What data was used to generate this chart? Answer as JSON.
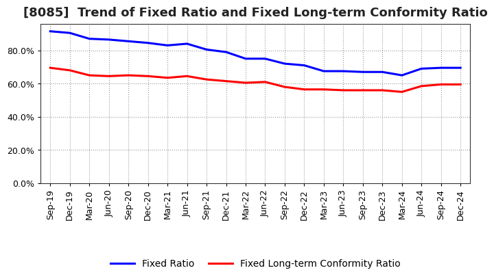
{
  "title": "[8085]  Trend of Fixed Ratio and Fixed Long-term Conformity Ratio",
  "labels": [
    "Sep-19",
    "Dec-19",
    "Mar-20",
    "Jun-20",
    "Sep-20",
    "Dec-20",
    "Mar-21",
    "Jun-21",
    "Sep-21",
    "Dec-21",
    "Mar-22",
    "Jun-22",
    "Sep-22",
    "Dec-22",
    "Mar-23",
    "Jun-23",
    "Sep-23",
    "Dec-23",
    "Mar-24",
    "Jun-24",
    "Sep-24",
    "Dec-24"
  ],
  "fixed_ratio": [
    91.5,
    90.5,
    87.0,
    86.5,
    85.5,
    84.5,
    83.0,
    84.0,
    80.5,
    79.0,
    75.0,
    75.0,
    72.0,
    71.0,
    67.5,
    67.5,
    67.0,
    67.0,
    65.0,
    69.0,
    69.5,
    69.5
  ],
  "fixed_lt_ratio": [
    69.5,
    68.0,
    65.0,
    64.5,
    65.0,
    64.5,
    63.5,
    64.5,
    62.5,
    61.5,
    60.5,
    61.0,
    58.0,
    56.5,
    56.5,
    56.0,
    56.0,
    56.0,
    55.0,
    58.5,
    59.5,
    59.5
  ],
  "fixed_ratio_color": "#0000FF",
  "fixed_lt_ratio_color": "#FF0000",
  "background_color": "#FFFFFF",
  "plot_bg_color": "#FFFFFF",
  "grid_color": "#999999",
  "ylim": [
    0,
    96
  ],
  "yticks": [
    0,
    20,
    40,
    60,
    80
  ],
  "ytick_labels": [
    "0.0%",
    "20.0%",
    "40.0%",
    "60.0%",
    "80.0%"
  ],
  "legend_fixed_ratio": "Fixed Ratio",
  "legend_fixed_lt_ratio": "Fixed Long-term Conformity Ratio",
  "line_width": 2.2,
  "title_fontsize": 13,
  "tick_fontsize": 9,
  "legend_fontsize": 10
}
